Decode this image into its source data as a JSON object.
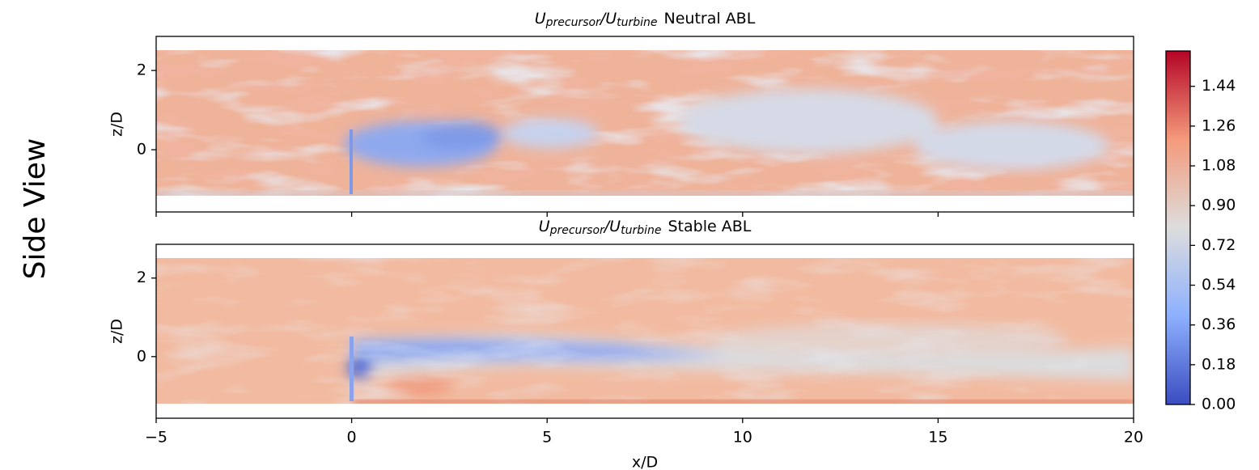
{
  "side_label": "Side View",
  "colorbar": {
    "colormap": "coolwarm",
    "lim": [
      0,
      1.6
    ],
    "ticks": [
      {
        "value": 0,
        "label": "0.00"
      },
      {
        "value": 0.18,
        "label": "0.18"
      },
      0.36,
      0.54,
      0.72,
      {
        "value": 0.9,
        "label": "0.90"
      },
      1.08,
      1.26,
      1.44
    ]
  },
  "chart_data": [
    {
      "type": "heatmap",
      "title_parts": [
        "U",
        "precursor",
        "/U",
        "turbine",
        "Neutral ABL"
      ],
      "xlim": [
        -5,
        20
      ],
      "xticks": [
        -5,
        0,
        5,
        10,
        15,
        20
      ],
      "ylim": [
        -1.57,
        2.86
      ],
      "yticks": [
        0,
        2
      ],
      "ylabel": "z/D"
    },
    {
      "type": "heatmap",
      "title_parts": [
        "U",
        "precursor",
        "/U",
        "turbine",
        "Stable ABL"
      ],
      "xlim": [
        -5,
        20
      ],
      "xticks": [
        {
          "value": -5,
          "label": "−5"
        },
        0,
        5,
        10,
        15,
        20
      ],
      "ylim": [
        -1.57,
        2.86
      ],
      "yticks": [
        0,
        2
      ],
      "ylabel": "z/D",
      "xlabel": "x/D"
    }
  ]
}
